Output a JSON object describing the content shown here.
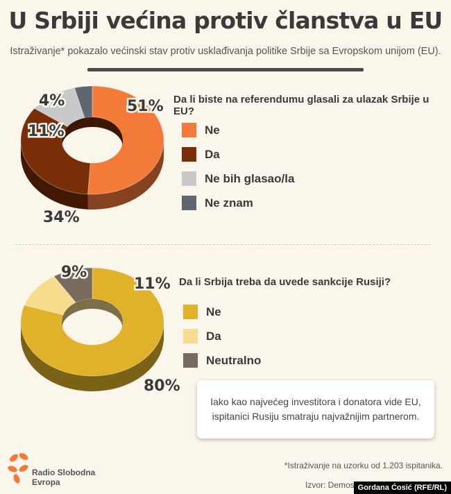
{
  "header": {
    "title": "U Srbiji većina protiv članstva u EU",
    "subtitle": "Istraživanje* pokazalo većinski stav protiv usklađivanja politike Srbije sa Evropskom unijom (EU)."
  },
  "chart_data": [
    {
      "type": "pie",
      "title": "Da li biste na referendumu glasali za ulazak Srbije u EU?",
      "categories": [
        "Ne",
        "Da",
        "Ne bih glasao/la",
        "Ne znam"
      ],
      "values": [
        51,
        34,
        11,
        4
      ],
      "labels": [
        "51%",
        "34%",
        "11%",
        "4%"
      ],
      "colors": [
        "#f47a3a",
        "#7a2e08",
        "#c9c9c9",
        "#5f6670"
      ],
      "legend_position": "right"
    },
    {
      "type": "pie",
      "title": "Da li Srbija treba da uvede sankcije Rusiji?",
      "categories": [
        "Ne",
        "Da",
        "Neutralno"
      ],
      "values": [
        80,
        11,
        9
      ],
      "labels": [
        "80%",
        "11%",
        "9%"
      ],
      "colors": [
        "#e0b22a",
        "#f7dc8e",
        "#786a5e"
      ],
      "legend_position": "right"
    }
  ],
  "note": "Iako kao najvećeg investitora i donatora vide EU, ispitanici Rusiju smatraju najvažnijim partnerom.",
  "footer": {
    "logo_line1": "Radio Slobodna",
    "logo_line2": "Evropa",
    "footnote": "*Istraživanje na uzorku od 1.203 ispitanika.",
    "source": "Izvor: Demostat, Is",
    "credit": "Gordana Ćosić (RFE/RL)"
  }
}
